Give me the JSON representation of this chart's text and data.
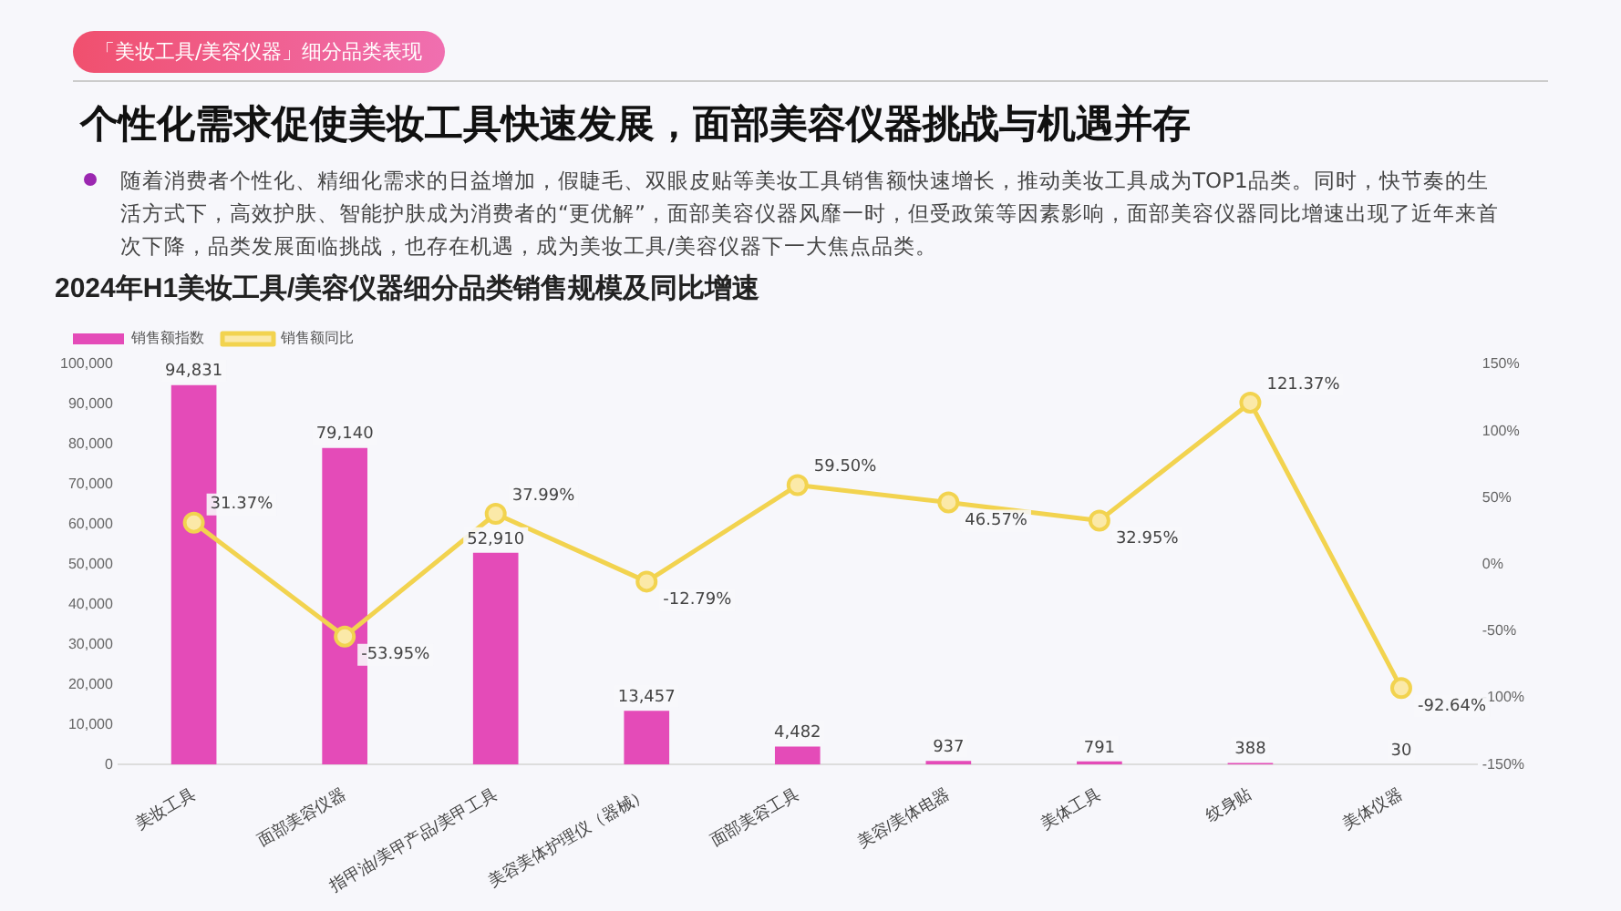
{
  "chart_data": {
    "type": "bar",
    "title": "2024年H1美妆工具/美容仪器细分品类销售规模及同比增速",
    "annotations": [
      "「美妆工具/美容仪器」细分品类表现",
      "个性化需求促使美妆工具快速发展，面部美容仪器挑战与机遇并存",
      "随着消费者个性化、精细化需求的日益增加，假睫毛、双眼皮贴等美妆工具销售额快速增长，推动美妆工具成为TOP1品类。同时，快节奏的生活方式下，高效护肤、智能护肤成为消费者的“更优解”，面部美容仪器风靡一时，但受政策等因素影响，面部美容仪器同比增速出现了近年来首次下降，品类发展面临挑战，也存在机遇，成为美妆工具/美容仪器下一大焦点品类。"
    ],
    "categories": [
      "美妆工具",
      "面部美容仪器",
      "指甲油/美甲产品/美甲工具",
      "美容美体护理仪（器械）",
      "面部美容工具",
      "美容/美体电器",
      "美体工具",
      "纹身贴",
      "美体仪器"
    ],
    "series": [
      {
        "name": "销售额指数",
        "color": "#e44bb8",
        "values": [
          94831,
          79140,
          52910,
          13457,
          4482,
          937,
          791,
          388,
          30
        ],
        "value_labels": [
          "94,831",
          "79,140",
          "52,910",
          "13,457",
          "4,482",
          "937",
          "791",
          "388",
          "30"
        ]
      },
      {
        "name": "销售额同比",
        "type": "line",
        "axis": "y2",
        "color": "#f2d34f",
        "values": [
          31.37,
          -53.95,
          37.99,
          -12.79,
          59.5,
          46.57,
          32.95,
          121.37,
          -92.64
        ],
        "value_labels": [
          "31.37%",
          "-53.95%",
          "37.99%",
          "-12.79%",
          "59.50%",
          "46.57%",
          "32.95%",
          "121.37%",
          "-92.64%"
        ]
      }
    ],
    "ylim": [
      0,
      100000
    ],
    "yticks": [
      0,
      {
        "value": 10000,
        "label": "10,000"
      },
      {
        "value": 20000,
        "label": "20,000"
      },
      {
        "value": 30000,
        "label": "30,000"
      },
      {
        "value": 40000,
        "label": "40,000"
      },
      {
        "value": 50000,
        "label": "50,000"
      },
      {
        "value": 60000,
        "label": "60,000"
      },
      {
        "value": 70000,
        "label": "70,000"
      },
      {
        "value": 80000,
        "label": "80,000"
      },
      {
        "value": 90000,
        "label": "90,000"
      },
      {
        "value": 100000,
        "label": "100,000"
      }
    ],
    "y2lim": [
      -150,
      150
    ],
    "y2ticks": [
      {
        "value": -150,
        "label": "-150%"
      },
      {
        "value": -100,
        "label": "-100%"
      },
      {
        "value": -50,
        "label": "-50%"
      },
      {
        "value": 0,
        "label": "0%"
      },
      {
        "value": 50,
        "label": "50%"
      },
      {
        "value": 100,
        "label": "100%"
      },
      {
        "value": 150,
        "label": "150%"
      }
    ],
    "legend": "top left",
    "marker": "circle"
  }
}
